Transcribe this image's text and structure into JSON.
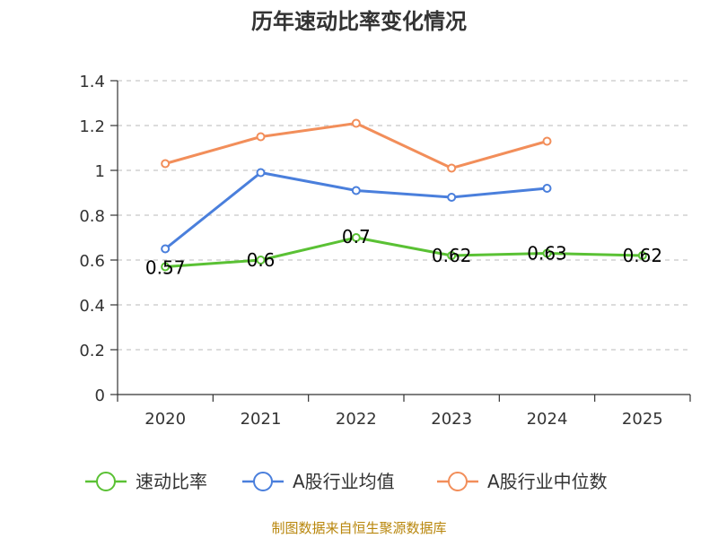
{
  "chart_data": {
    "type": "line",
    "title": "历年速动比率变化情况",
    "categories": [
      "2020",
      "2021",
      "2022",
      "2023",
      "2024",
      "2025"
    ],
    "ylim": [
      0,
      1.4
    ],
    "yticks": [
      "0",
      "0.2",
      "0.4",
      "0.6",
      "0.8",
      "1",
      "1.2",
      "1.4"
    ],
    "grid": "horizontal-dashed",
    "legend_position": "bottom",
    "series": [
      {
        "key": "quick_ratio",
        "name": "速动比率",
        "color": "#5ac134",
        "values": [
          0.57,
          0.6,
          0.7,
          0.62,
          0.63,
          0.62
        ],
        "labels": [
          "0.57",
          "0.6",
          "0.7",
          "0.62",
          "0.63",
          "0.62"
        ]
      },
      {
        "key": "industry_avg",
        "name": "A股行业均值",
        "color": "#4a7fdc",
        "values": [
          0.65,
          0.99,
          0.91,
          0.88,
          0.92,
          null
        ]
      },
      {
        "key": "industry_median",
        "name": "A股行业中位数",
        "color": "#f28e5a",
        "values": [
          1.03,
          1.15,
          1.21,
          1.01,
          1.13,
          null
        ]
      }
    ],
    "source": "制图数据来自恒生聚源数据库"
  }
}
